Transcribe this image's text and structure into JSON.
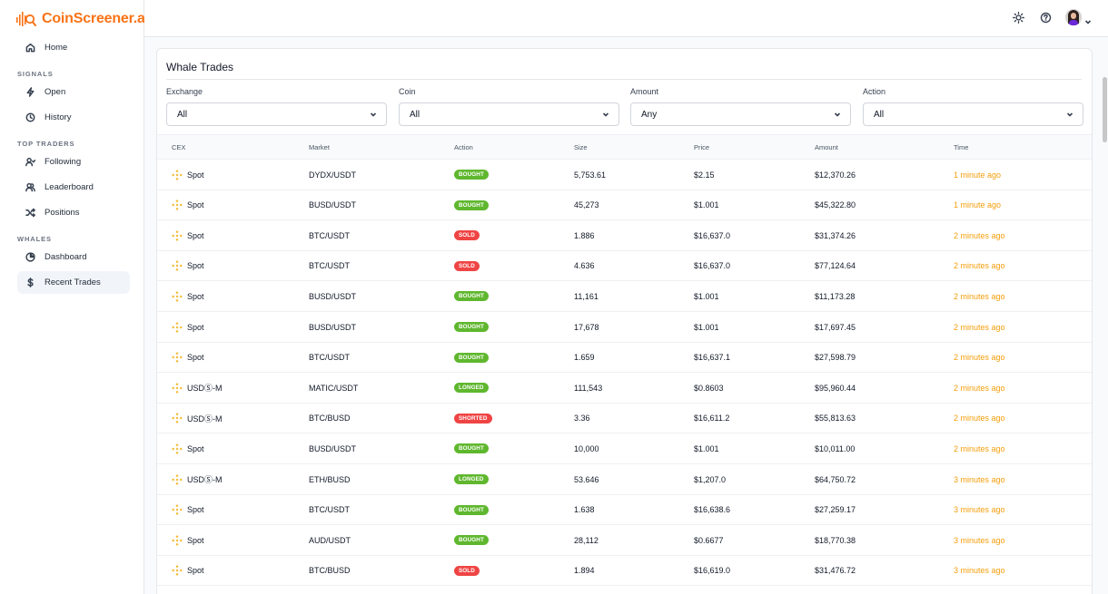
{
  "brand": {
    "name": "CoinScreener.ai",
    "accent": "#f97316"
  },
  "sidebar": {
    "home": {
      "label": "Home",
      "icon": "home-icon"
    },
    "sections": [
      {
        "title": "SIGNALS",
        "items": [
          {
            "label": "Open",
            "icon": "lightning-icon"
          },
          {
            "label": "History",
            "icon": "clock-icon"
          }
        ]
      },
      {
        "title": "TOP TRADERS",
        "items": [
          {
            "label": "Following",
            "icon": "user-follow-icon"
          },
          {
            "label": "Leaderboard",
            "icon": "users-icon"
          },
          {
            "label": "Positions",
            "icon": "shuffle-icon"
          }
        ]
      },
      {
        "title": "WHALES",
        "items": [
          {
            "label": "Dashboard",
            "icon": "pie-chart-icon"
          },
          {
            "label": "Recent Trades",
            "icon": "dollar-icon",
            "active": true
          }
        ]
      }
    ]
  },
  "header": {
    "icons": [
      "sun-icon",
      "help-icon",
      "avatar",
      "chevron-down-icon"
    ]
  },
  "main": {
    "title": "Whale Trades",
    "filters": [
      {
        "label": "Exchange",
        "value": "All"
      },
      {
        "label": "Coin",
        "value": "All"
      },
      {
        "label": "Amount",
        "value": "Any"
      },
      {
        "label": "Action",
        "value": "All"
      }
    ],
    "columns": [
      "CEX",
      "Market",
      "Action",
      "Size",
      "Price",
      "Amount",
      "Time"
    ],
    "rows": [
      {
        "cex": "Spot",
        "market": "DYDX/USDT",
        "action": "BOUGHT",
        "color": "green",
        "size": "5,753.61",
        "price": "$2.15",
        "amount": "$12,370.26",
        "time": "1 minute ago"
      },
      {
        "cex": "Spot",
        "market": "BUSD/USDT",
        "action": "BOUGHT",
        "color": "green",
        "size": "45,273",
        "price": "$1.001",
        "amount": "$45,322.80",
        "time": "1 minute ago"
      },
      {
        "cex": "Spot",
        "market": "BTC/USDT",
        "action": "SOLD",
        "color": "red",
        "size": "1.886",
        "price": "$16,637.0",
        "amount": "$31,374.26",
        "time": "2 minutes ago"
      },
      {
        "cex": "Spot",
        "market": "BTC/USDT",
        "action": "SOLD",
        "color": "red",
        "size": "4.636",
        "price": "$16,637.0",
        "amount": "$77,124.64",
        "time": "2 minutes ago"
      },
      {
        "cex": "Spot",
        "market": "BUSD/USDT",
        "action": "BOUGHT",
        "color": "green",
        "size": "11,161",
        "price": "$1.001",
        "amount": "$11,173.28",
        "time": "2 minutes ago"
      },
      {
        "cex": "Spot",
        "market": "BUSD/USDT",
        "action": "BOUGHT",
        "color": "green",
        "size": "17,678",
        "price": "$1.001",
        "amount": "$17,697.45",
        "time": "2 minutes ago"
      },
      {
        "cex": "Spot",
        "market": "BTC/USDT",
        "action": "BOUGHT",
        "color": "green",
        "size": "1.659",
        "price": "$16,637.1",
        "amount": "$27,598.79",
        "time": "2 minutes ago"
      },
      {
        "cex": "USDⓈ-M",
        "market": "MATIC/USDT",
        "action": "LONGED",
        "color": "green",
        "size": "111,543",
        "price": "$0.8603",
        "amount": "$95,960.44",
        "time": "2 minutes ago"
      },
      {
        "cex": "USDⓈ-M",
        "market": "BTC/BUSD",
        "action": "SHORTED",
        "color": "red",
        "size": "3.36",
        "price": "$16,611.2",
        "amount": "$55,813.63",
        "time": "2 minutes ago"
      },
      {
        "cex": "Spot",
        "market": "BUSD/USDT",
        "action": "BOUGHT",
        "color": "green",
        "size": "10,000",
        "price": "$1.001",
        "amount": "$10,011.00",
        "time": "2 minutes ago"
      },
      {
        "cex": "USDⓈ-M",
        "market": "ETH/BUSD",
        "action": "LONGED",
        "color": "green",
        "size": "53.646",
        "price": "$1,207.0",
        "amount": "$64,750.72",
        "time": "3 minutes ago"
      },
      {
        "cex": "Spot",
        "market": "BTC/USDT",
        "action": "BOUGHT",
        "color": "green",
        "size": "1.638",
        "price": "$16,638.6",
        "amount": "$27,259.17",
        "time": "3 minutes ago"
      },
      {
        "cex": "Spot",
        "market": "AUD/USDT",
        "action": "BOUGHT",
        "color": "green",
        "size": "28,112",
        "price": "$0.6677",
        "amount": "$18,770.38",
        "time": "3 minutes ago"
      },
      {
        "cex": "Spot",
        "market": "BTC/BUSD",
        "action": "SOLD",
        "color": "red",
        "size": "1.894",
        "price": "$16,619.0",
        "amount": "$31,476.72",
        "time": "3 minutes ago"
      }
    ]
  }
}
